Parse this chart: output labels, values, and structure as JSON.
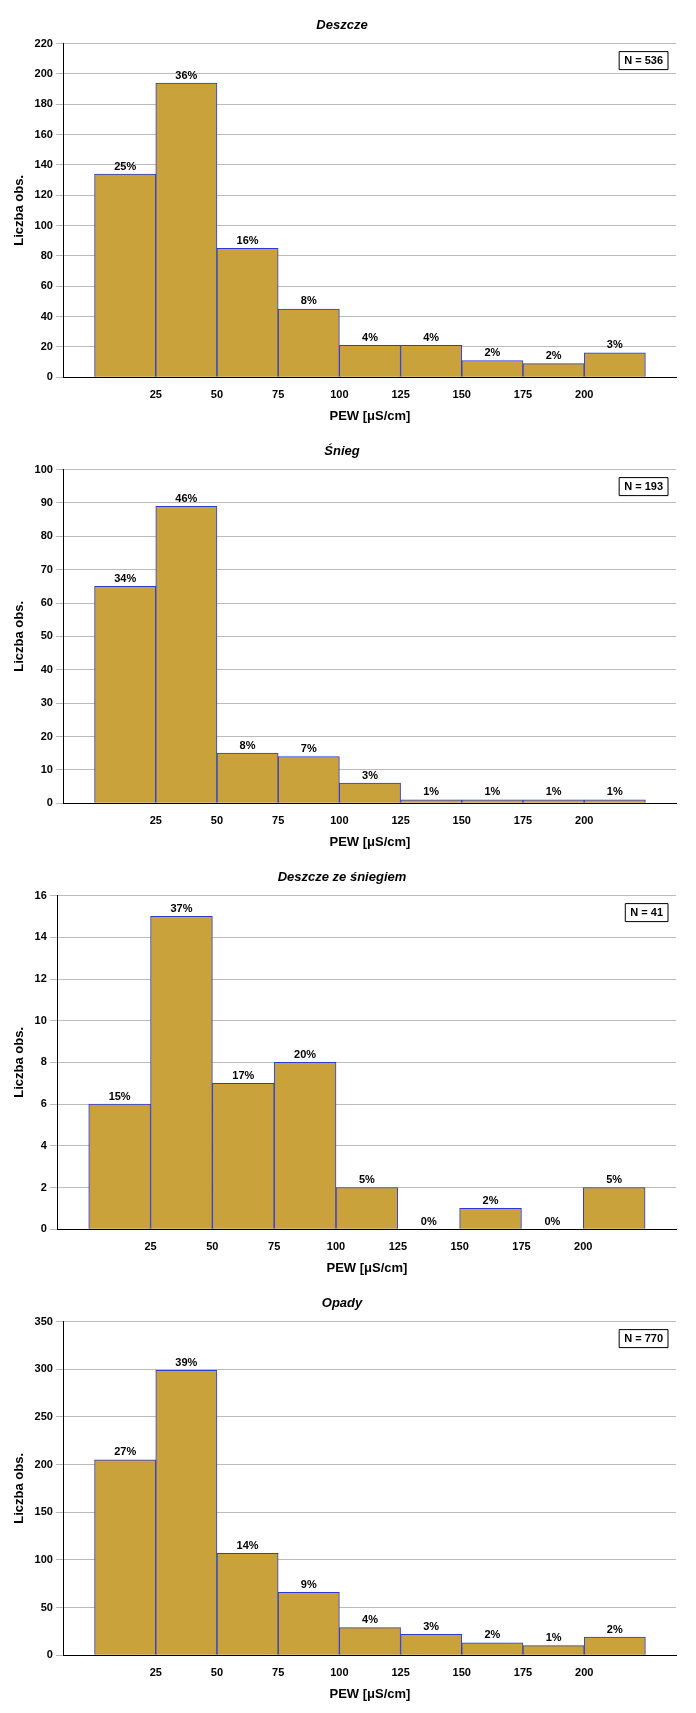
{
  "chart_data": [
    {
      "type": "histogram",
      "title": "Deszcze",
      "xlabel": "PEW [μS/cm]",
      "ylabel": "Liczba obs.",
      "bins": [
        0,
        25,
        50,
        75,
        100,
        125,
        150,
        175,
        200,
        225
      ],
      "values": [
        134,
        194,
        85,
        45,
        21,
        21,
        11,
        9,
        16
      ],
      "color": "#c9a23c",
      "xlim": [
        -12.5,
        237.5
      ],
      "xticks": [
        25,
        50,
        75,
        100,
        125,
        150,
        175,
        200
      ],
      "ylim": [
        0,
        220
      ],
      "yticks": [
        0,
        20,
        40,
        60,
        80,
        100,
        120,
        140,
        160,
        180,
        200,
        220
      ],
      "grid": "y",
      "annotations": [
        "N = 536",
        {
          "text": "25%",
          "x": 12.5,
          "y": 134
        },
        {
          "text": "36%",
          "x": 37.5,
          "y": 194
        },
        {
          "text": "16%",
          "x": 62.5,
          "y": 85
        },
        {
          "text": "8%",
          "x": 87.5,
          "y": 45
        },
        {
          "text": "4%",
          "x": 112.5,
          "y": 21
        },
        {
          "text": "4%",
          "x": 137.5,
          "y": 21
        },
        {
          "text": "2%",
          "x": 162.5,
          "y": 11
        },
        {
          "text": "2%",
          "x": 187.5,
          "y": 9
        },
        {
          "text": "3%",
          "x": 212.5,
          "y": 16
        }
      ]
    },
    {
      "type": "histogram",
      "title": "Śnieg",
      "xlabel": "PEW [μS/cm]",
      "ylabel": "Liczba obs.",
      "bins": [
        0,
        25,
        50,
        75,
        100,
        125,
        150,
        175,
        200,
        225
      ],
      "values": [
        65,
        89,
        15,
        14,
        6,
        1,
        1,
        1,
        1
      ],
      "color": "#c9a23c",
      "xlim": [
        -12.5,
        237.5
      ],
      "xticks": [
        25,
        50,
        75,
        100,
        125,
        150,
        175,
        200
      ],
      "ylim": [
        0,
        100
      ],
      "yticks": [
        0,
        10,
        20,
        30,
        40,
        50,
        60,
        70,
        80,
        90,
        100
      ],
      "grid": "y",
      "annotations": [
        "N = 193",
        {
          "text": "34%",
          "x": 12.5,
          "y": 65
        },
        {
          "text": "46%",
          "x": 37.5,
          "y": 89
        },
        {
          "text": "8%",
          "x": 62.5,
          "y": 15
        },
        {
          "text": "7%",
          "x": 87.5,
          "y": 14
        },
        {
          "text": "3%",
          "x": 112.5,
          "y": 6
        },
        {
          "text": "1%",
          "x": 137.5,
          "y": 1
        },
        {
          "text": "1%",
          "x": 162.5,
          "y": 1
        },
        {
          "text": "1%",
          "x": 187.5,
          "y": 1
        },
        {
          "text": "1%",
          "x": 212.5,
          "y": 1
        }
      ]
    },
    {
      "type": "histogram",
      "title": "Deszcze ze śniegiem",
      "xlabel": "PEW [μS/cm]",
      "ylabel": "Liczba obs.",
      "bins": [
        0,
        25,
        50,
        75,
        100,
        125,
        150,
        175,
        200,
        225
      ],
      "values": [
        6,
        15,
        7,
        8,
        2,
        0,
        1,
        0,
        2
      ],
      "color": "#c9a23c",
      "xlim": [
        -12.5,
        237.5
      ],
      "xticks": [
        25,
        50,
        75,
        100,
        125,
        150,
        175,
        200
      ],
      "ylim": [
        0,
        16
      ],
      "yticks": [
        0,
        2,
        4,
        6,
        8,
        10,
        12,
        14,
        16
      ],
      "grid": "y",
      "annotations": [
        "N = 41",
        {
          "text": "15%",
          "x": 12.5,
          "y": 6
        },
        {
          "text": "37%",
          "x": 37.5,
          "y": 15
        },
        {
          "text": "17%",
          "x": 62.5,
          "y": 7
        },
        {
          "text": "20%",
          "x": 87.5,
          "y": 8
        },
        {
          "text": "5%",
          "x": 112.5,
          "y": 2
        },
        {
          "text": "0%",
          "x": 137.5,
          "y": 0
        },
        {
          "text": "2%",
          "x": 162.5,
          "y": 1
        },
        {
          "text": "0%",
          "x": 187.5,
          "y": 0
        },
        {
          "text": "5%",
          "x": 212.5,
          "y": 2
        }
      ]
    },
    {
      "type": "histogram",
      "title": "Opady",
      "xlabel": "PEW [μS/cm]",
      "ylabel": "Liczba obs.",
      "bins": [
        0,
        25,
        50,
        75,
        100,
        125,
        150,
        175,
        200,
        225
      ],
      "values": [
        205,
        299,
        107,
        66,
        29,
        22,
        13,
        10,
        19
      ],
      "color": "#c9a23c",
      "xlim": [
        -12.5,
        237.5
      ],
      "xticks": [
        25,
        50,
        75,
        100,
        125,
        150,
        175,
        200
      ],
      "ylim": [
        0,
        350
      ],
      "yticks": [
        0,
        50,
        100,
        150,
        200,
        250,
        300,
        350
      ],
      "grid": "y",
      "annotations": [
        "N = 770",
        {
          "text": "27%",
          "x": 12.5,
          "y": 205
        },
        {
          "text": "39%",
          "x": 37.5,
          "y": 299
        },
        {
          "text": "14%",
          "x": 62.5,
          "y": 107
        },
        {
          "text": "9%",
          "x": 87.5,
          "y": 66
        },
        {
          "text": "4%",
          "x": 112.5,
          "y": 29
        },
        {
          "text": "3%",
          "x": 137.5,
          "y": 22
        },
        {
          "text": "2%",
          "x": 162.5,
          "y": 13
        },
        {
          "text": "1%",
          "x": 187.5,
          "y": 10
        },
        {
          "text": "2%",
          "x": 212.5,
          "y": 19
        }
      ]
    }
  ]
}
